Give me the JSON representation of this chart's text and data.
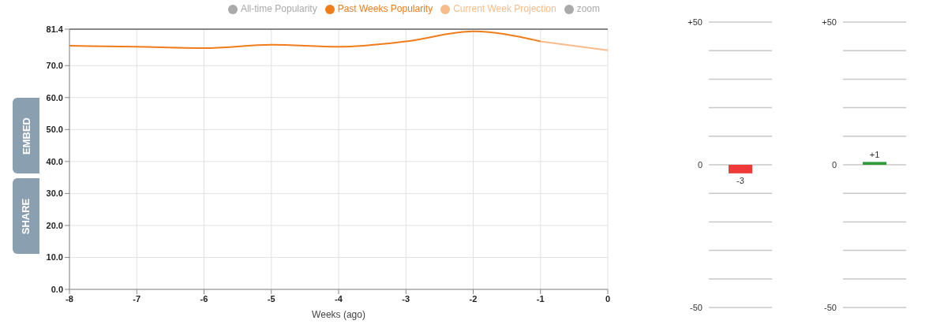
{
  "chart_data": [
    {
      "type": "line",
      "xlabel": "Weeks (ago)",
      "xlim": [
        -8,
        0
      ],
      "xticks": [
        -8,
        -7,
        -6,
        -5,
        -4,
        -3,
        -2,
        -1,
        0
      ],
      "ylim": [
        0,
        81.4
      ],
      "yticks": [
        {
          "value": 0,
          "label": "0.0"
        },
        {
          "value": 10,
          "label": "10.0"
        },
        {
          "value": 20,
          "label": "20.0"
        },
        {
          "value": 30,
          "label": "30.0"
        },
        {
          "value": 40,
          "label": "40.0"
        },
        {
          "value": 50,
          "label": "50.0"
        },
        {
          "value": 60,
          "label": "60.0"
        },
        {
          "value": 70,
          "label": "70.0"
        },
        {
          "value": 81.4,
          "label": "81.4"
        }
      ],
      "grid": true,
      "legend": "top right",
      "marker": "none",
      "annotations": [
        "EMBED",
        "SHARE"
      ],
      "series": [
        {
          "name": "All-time Popularity",
          "color": "#aaaaaa"
        },
        {
          "name": "Past Weeks Popularity",
          "color": "#f07c1a",
          "x": [
            -8,
            -7,
            -6,
            -5,
            -4,
            -3,
            -2,
            -1
          ],
          "values": [
            76.2,
            75.9,
            75.5,
            76.5,
            75.9,
            77.6,
            80.7,
            77.6
          ]
        },
        {
          "name": "Current Week Projection",
          "color": "#f8bc8a",
          "x": [
            -1,
            0
          ],
          "values": [
            77.6,
            74.8
          ]
        },
        {
          "name": "zoom",
          "color": "#aaaaaa"
        }
      ]
    },
    {
      "type": "bar",
      "categories": [
        null
      ],
      "values": [
        -3
      ],
      "color": "#f03a3a",
      "value_labels": [
        "-3"
      ],
      "ylim": [
        -50,
        50
      ],
      "yticks": [
        {
          "value": -50,
          "label": "-50"
        },
        {
          "value": -40,
          "label": null
        },
        {
          "value": -30,
          "label": null
        },
        {
          "value": -20,
          "label": null
        },
        {
          "value": -10,
          "label": null
        },
        {
          "value": 0,
          "label": "0"
        },
        {
          "value": 10,
          "label": null
        },
        {
          "value": 20,
          "label": null
        },
        {
          "value": 30,
          "label": null
        },
        {
          "value": 40,
          "label": null
        },
        {
          "value": 50,
          "label": "+50"
        }
      ],
      "grid": "y"
    },
    {
      "type": "bar",
      "categories": [
        null
      ],
      "values": [
        1
      ],
      "color": "#2e9a3a",
      "value_labels": [
        "+1"
      ],
      "ylim": [
        -50,
        50
      ],
      "yticks": [
        {
          "value": -50,
          "label": "-50"
        },
        {
          "value": -40,
          "label": null
        },
        {
          "value": -30,
          "label": null
        },
        {
          "value": -20,
          "label": null
        },
        {
          "value": -10,
          "label": null
        },
        {
          "value": 0,
          "label": "0"
        },
        {
          "value": 10,
          "label": null
        },
        {
          "value": 20,
          "label": null
        },
        {
          "value": 30,
          "label": null
        },
        {
          "value": 40,
          "label": null
        },
        {
          "value": 50,
          "label": "+50"
        }
      ],
      "grid": "y"
    }
  ]
}
